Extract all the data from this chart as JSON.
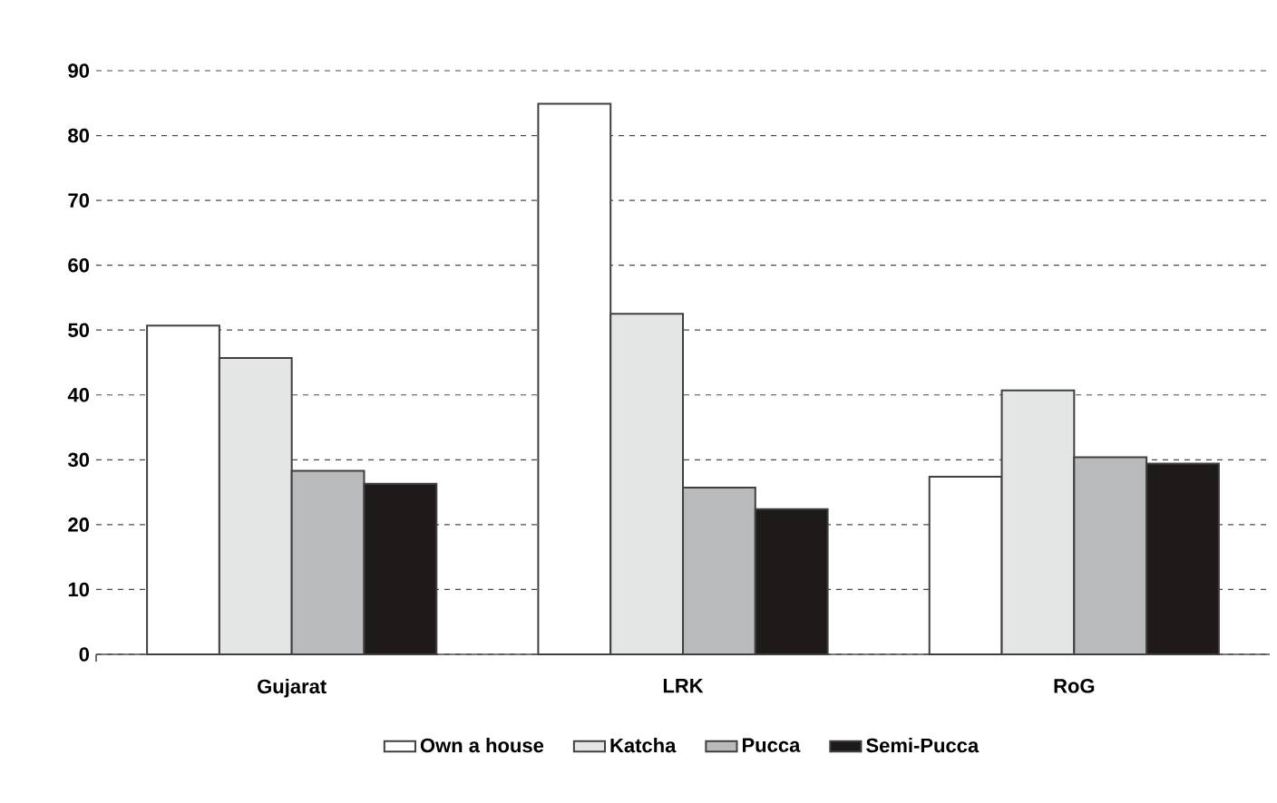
{
  "chart_data": {
    "type": "bar",
    "categories": [
      "Gujarat",
      "LRK",
      "RoG"
    ],
    "series": [
      {
        "name": "Own a house",
        "color": "#ffffff",
        "values": [
          50.7,
          84.9,
          27.4
        ]
      },
      {
        "name": "Katcha",
        "color": "#e4e6e6",
        "values": [
          45.7,
          52.5,
          40.7
        ]
      },
      {
        "name": "Pucca",
        "color": "#b8babc",
        "values": [
          28.3,
          25.7,
          30.4
        ]
      },
      {
        "name": "Semi-Pucca",
        "color": "#1e1a1a",
        "values": [
          26.3,
          22.4,
          29.4
        ]
      }
    ],
    "ylim": [
      0,
      90
    ],
    "yticks": [
      0,
      10,
      20,
      30,
      40,
      50,
      60,
      70,
      80,
      90
    ],
    "grid": "y",
    "legend": "bottom"
  }
}
